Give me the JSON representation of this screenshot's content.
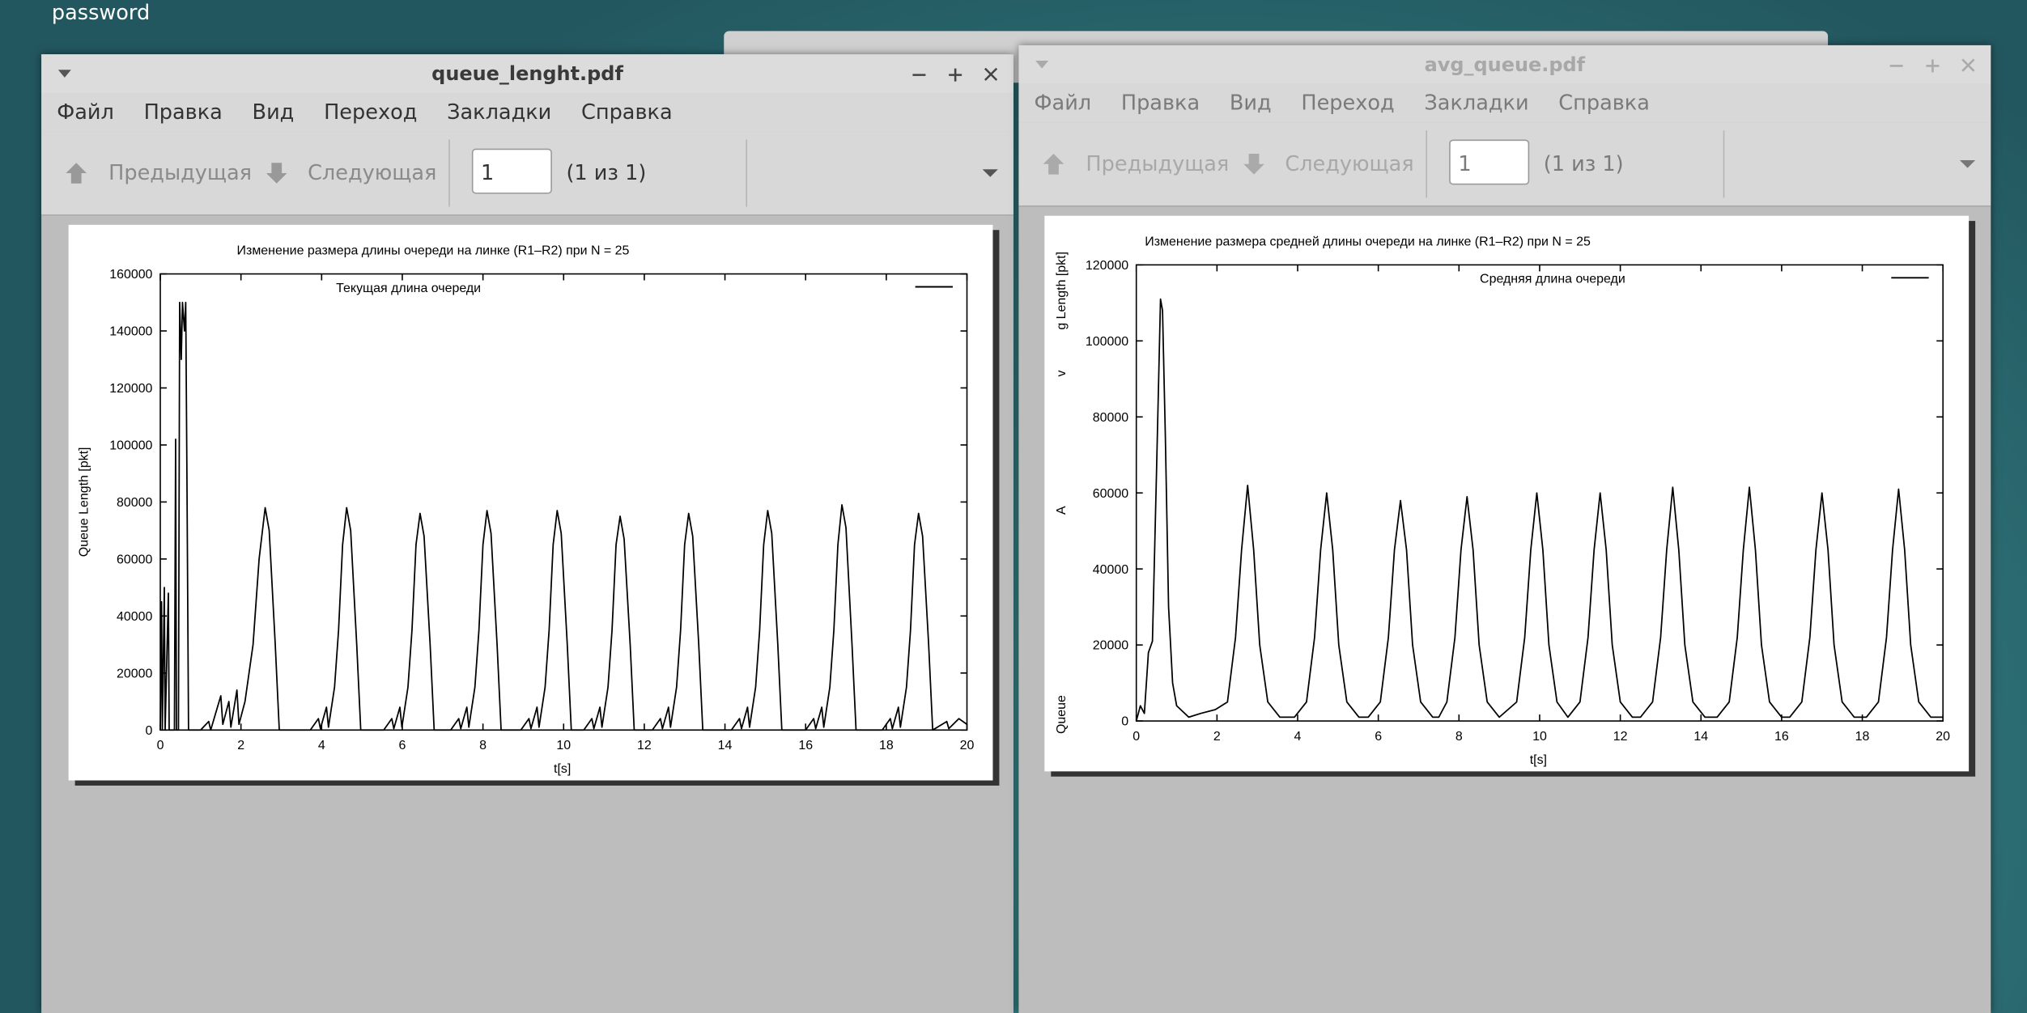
{
  "desktop": {
    "label": "password"
  },
  "windows": [
    {
      "title": "queue_lenght.pdf",
      "menu": [
        "Файл",
        "Правка",
        "Вид",
        "Переход",
        "Закладки",
        "Справка"
      ],
      "toolbar": {
        "previous": "Предыдущая",
        "next": "Следующая",
        "page": 1,
        "page_count": "(1 из 1)"
      },
      "chart_data": {
        "type": "line",
        "title": "Изменение размера длины очереди на линке (R1–R2) при N = 25",
        "xlabel": "t[s]",
        "ylabel": "Queue Length [pkt]",
        "xlim": [
          0,
          20
        ],
        "xticks": [
          0,
          2,
          4,
          6,
          8,
          10,
          12,
          14,
          16,
          18,
          20
        ],
        "ylim": [
          0,
          160000
        ],
        "yticks": [
          0,
          20000,
          40000,
          60000,
          80000,
          100000,
          120000,
          140000,
          160000
        ],
        "grid": false,
        "x": [
          0,
          0.03,
          0.05,
          0.1,
          0.12,
          0.2,
          0.22,
          0.35,
          0.38,
          0.4,
          0.45,
          0.48,
          0.52,
          0.55,
          0.6,
          0.63,
          0.66,
          0.7,
          1.0,
          1.2,
          1.25,
          1.5,
          1.55,
          1.7,
          1.75,
          1.9,
          1.95,
          2.1,
          2.3,
          2.45,
          2.6,
          2.7,
          2.85,
          2.95,
          3.72,
          3.92,
          3.97,
          4.12,
          4.17,
          4.32,
          4.42,
          4.52,
          4.62,
          4.72,
          4.87,
          4.97,
          5.54,
          5.74,
          5.79,
          5.94,
          5.99,
          6.14,
          6.24,
          6.34,
          6.44,
          6.54,
          6.69,
          6.79,
          7.2,
          7.4,
          7.45,
          7.6,
          7.65,
          7.8,
          7.9,
          8.0,
          8.1,
          8.2,
          8.35,
          8.45,
          8.94,
          9.14,
          9.19,
          9.34,
          9.39,
          9.54,
          9.64,
          9.74,
          9.84,
          9.94,
          10.09,
          10.19,
          10.5,
          10.7,
          10.75,
          10.9,
          10.95,
          11.1,
          11.2,
          11.3,
          11.4,
          11.5,
          11.65,
          11.75,
          12.2,
          12.4,
          12.45,
          12.6,
          12.65,
          12.8,
          12.9,
          13.0,
          13.1,
          13.2,
          13.35,
          13.45,
          14.16,
          14.36,
          14.41,
          14.56,
          14.61,
          14.76,
          14.86,
          14.96,
          15.06,
          15.16,
          15.31,
          15.41,
          16.0,
          16.2,
          16.25,
          16.4,
          16.45,
          16.6,
          16.7,
          16.8,
          16.9,
          17.0,
          17.15,
          17.25,
          17.9,
          18.1,
          18.15,
          18.3,
          18.35,
          18.5,
          18.6,
          18.7,
          18.8,
          18.9,
          19.05,
          19.15,
          19.5,
          19.55,
          19.8,
          20
        ],
        "series": [
          {
            "name": "Текущая длина очереди",
            "color": "#000000",
            "values": [
              0,
              45000,
              0,
              50000,
              0,
              48000,
              0,
              0,
              102000,
              0,
              0,
              150000,
              130000,
              150000,
              140000,
              150000,
              90000,
              0,
              0,
              3000,
              0,
              12000,
              2000,
              10000,
              1000,
              14000,
              2000,
              10000,
              30000,
              60000,
              78000,
              70000,
              30000,
              0,
              0,
              4000,
              500,
              8000,
              1000,
              15000,
              35000,
              65000,
              78000,
              70000,
              30000,
              0,
              0,
              4000,
              500,
              8000,
              1000,
              15000,
              35000,
              65000,
              76000,
              68000,
              30000,
              0,
              0,
              4000,
              500,
              8000,
              1000,
              15000,
              35000,
              65000,
              77000,
              69000,
              30000,
              0,
              0,
              4000,
              500,
              8000,
              1000,
              15000,
              35000,
              65000,
              77000,
              69000,
              30000,
              0,
              0,
              4000,
              500,
              8000,
              1000,
              15000,
              35000,
              65000,
              75000,
              67000,
              30000,
              0,
              0,
              4000,
              500,
              8000,
              1000,
              15000,
              35000,
              65000,
              76000,
              68000,
              30000,
              0,
              0,
              4000,
              500,
              8000,
              1000,
              15000,
              35000,
              65000,
              77000,
              69000,
              30000,
              0,
              0,
              4000,
              500,
              8000,
              1000,
              15000,
              35000,
              65000,
              79000,
              71000,
              30000,
              0,
              0,
              4000,
              500,
              8000,
              1000,
              15000,
              35000,
              65000,
              76000,
              68000,
              30000,
              0,
              3000,
              500,
              4000,
              2000
            ]
          }
        ]
      }
    },
    {
      "title": "avg_queue.pdf",
      "menu": [
        "Файл",
        "Правка",
        "Вид",
        "Переход",
        "Закладки",
        "Справка"
      ],
      "toolbar": {
        "previous": "Предыдущая",
        "next": "Следующая",
        "page": 1,
        "page_count": "(1 из 1)"
      },
      "chart_data": {
        "type": "line",
        "title": "Изменение размера средней длины очереди на линке (R1–R2) при N = 25",
        "xlabel": "t[s]",
        "ylabel_parts": [
          "Queue",
          "A",
          "v",
          "g Length [pkt]"
        ],
        "xlim": [
          0,
          20
        ],
        "xticks": [
          0,
          2,
          4,
          6,
          8,
          10,
          12,
          14,
          16,
          18,
          20
        ],
        "ylim": [
          0,
          120000
        ],
        "yticks": [
          0,
          20000,
          40000,
          60000,
          80000,
          100000,
          120000
        ],
        "grid": false,
        "x": [
          0,
          0.1,
          0.2,
          0.3,
          0.4,
          0.5,
          0.6,
          0.65,
          0.72,
          0.8,
          0.9,
          1.0,
          1.3,
          1.6,
          1.96,
          2.26,
          2.46,
          2.61,
          2.76,
          2.91,
          3.06,
          3.26,
          3.56,
          3.92,
          4.22,
          4.42,
          4.57,
          4.72,
          4.87,
          5.02,
          5.22,
          5.52,
          5.75,
          6.05,
          6.25,
          6.4,
          6.55,
          6.7,
          6.85,
          7.05,
          7.35,
          7.5,
          7.7,
          7.9,
          8.05,
          8.2,
          8.35,
          8.5,
          8.7,
          9.0,
          9.43,
          9.63,
          9.78,
          9.93,
          10.08,
          10.23,
          10.43,
          10.7,
          11.0,
          11.2,
          11.35,
          11.5,
          11.65,
          11.8,
          12.0,
          12.3,
          12.5,
          12.8,
          13.0,
          13.15,
          13.3,
          13.45,
          13.6,
          13.8,
          14.1,
          14.4,
          14.7,
          14.9,
          15.05,
          15.2,
          15.35,
          15.5,
          15.7,
          16.0,
          16.2,
          16.5,
          16.7,
          16.85,
          17.0,
          17.15,
          17.3,
          17.5,
          17.8,
          18.1,
          18.4,
          18.6,
          18.75,
          18.9,
          19.05,
          19.2,
          19.4,
          19.7,
          20
        ],
        "series": [
          {
            "name": "Средняя длина очереди",
            "color": "#000000",
            "values": [
              0,
              4000,
              2000,
              18000,
              21000,
              65000,
              111000,
              108000,
              75000,
              30000,
              10000,
              4000,
              1000,
              2000,
              3000,
              5000,
              22000,
              45000,
              62000,
              45000,
              20000,
              5000,
              1000,
              1000,
              5000,
              22000,
              45000,
              60000,
              45000,
              20000,
              5000,
              1000,
              1000,
              5000,
              22000,
              45000,
              58000,
              45000,
              20000,
              5000,
              1000,
              1000,
              5000,
              22000,
              45000,
              59000,
              45000,
              20000,
              5000,
              1000,
              5000,
              22000,
              45000,
              60000,
              45000,
              20000,
              5000,
              1000,
              5000,
              22000,
              45000,
              60000,
              45000,
              20000,
              5000,
              1000,
              1000,
              5000,
              22000,
              45000,
              61500,
              45000,
              20000,
              5000,
              1000,
              1000,
              5000,
              22000,
              45000,
              61500,
              45000,
              20000,
              5000,
              1000,
              1000,
              5000,
              22000,
              45000,
              60000,
              45000,
              20000,
              5000,
              1000,
              1000,
              5000,
              22000,
              45000,
              61000,
              45000,
              20000,
              5000,
              1000,
              1000
            ]
          }
        ]
      }
    }
  ]
}
